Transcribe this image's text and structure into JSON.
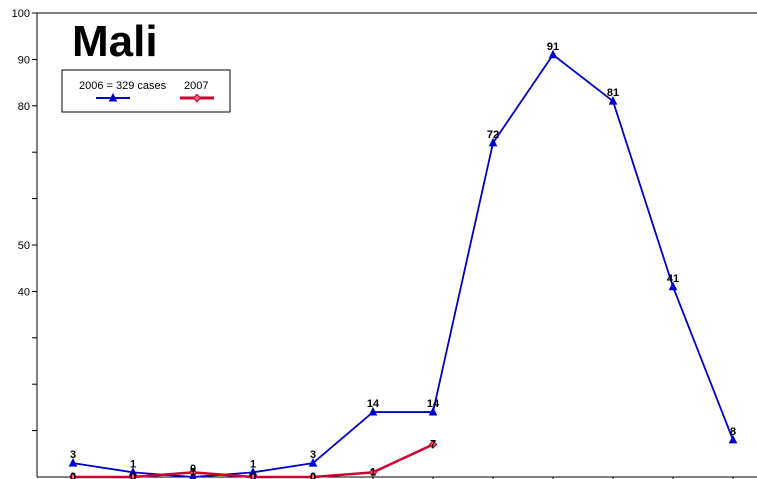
{
  "chart_data": {
    "type": "line",
    "title": "Mali",
    "xlabel": "",
    "ylabel": "",
    "ylim": [
      0,
      100
    ],
    "y_tick_labels": [
      40,
      50,
      80,
      90,
      100
    ],
    "y_ticks_all": [
      10,
      20,
      30,
      40,
      50,
      60,
      70,
      80,
      90,
      100
    ],
    "x_count": 12,
    "grid": false,
    "legend_position": "top-left",
    "series": [
      {
        "name": "2006 = 329 cases",
        "color": "#0000cc",
        "marker": "triangle",
        "values": [
          3,
          1,
          0,
          1,
          3,
          14,
          14,
          72,
          91,
          81,
          41,
          8
        ]
      },
      {
        "name": "2007",
        "color": "#cc0033",
        "marker": "diamond",
        "values": [
          0,
          0,
          1,
          0,
          0,
          1,
          7
        ]
      }
    ]
  }
}
